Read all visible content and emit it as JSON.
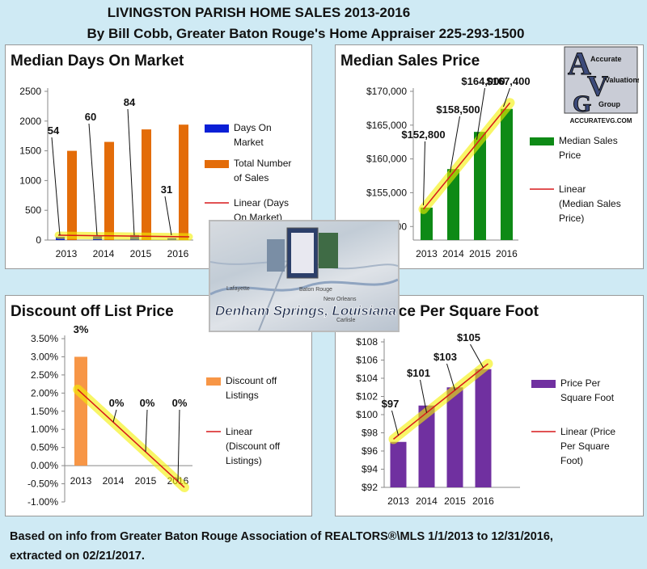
{
  "header": {
    "title": "LIVINGSTON PARISH HOME SALES 2013-2016",
    "subtitle": "By Bill Cobb, Greater Baton Rouge's Home Appraiser 225-293-1500"
  },
  "footer": {
    "line1": "Based on info from Greater Baton Rouge Association of REALTORS®\\MLS 1/1/2013 to 12/31/2016,",
    "line2": "extracted on 02/21/2017."
  },
  "photo": {
    "caption": "Denham Springs, Louisiana",
    "map_labels": [
      "Baton Rouge",
      "Lafayette",
      "New Orleans",
      "Carlisle"
    ]
  },
  "logo": {
    "line1": "Accurate",
    "line2": "Valuations",
    "line3": "Group",
    "site": "ACCURATEVG.COM"
  },
  "colors": {
    "blue": "#0a1fd6",
    "orange": "#e36c09",
    "green": "#0e8a16",
    "lightorange": "#f79646",
    "purple": "#7030a0",
    "trend": "#d7191c",
    "highlight": "#f4f000"
  },
  "chart_data": [
    {
      "type": "bar",
      "title": "Median Days On Market",
      "categories": [
        "2013",
        "2014",
        "2015",
        "2016"
      ],
      "series": [
        {
          "name": "Days On Market",
          "values": [
            54,
            60,
            84,
            31
          ],
          "color": "#0a1fd6"
        },
        {
          "name": "Total Number of Sales",
          "values": [
            1500,
            1650,
            1860,
            1940
          ],
          "color": "#e36c09"
        }
      ],
      "trendline": "Linear (Days On Market)",
      "ylim": [
        0,
        2500
      ],
      "yticks": [
        "0",
        "500",
        "1000",
        "1500",
        "2000",
        "2500"
      ],
      "data_labels": [
        "54",
        "60",
        "84",
        "31"
      ]
    },
    {
      "type": "bar",
      "title": "Median Sales Price",
      "categories": [
        "2013",
        "2014",
        "2015",
        "2016"
      ],
      "series": [
        {
          "name": "Median Sales Price",
          "values": [
            152800,
            158500,
            164000,
            167400
          ],
          "color": "#0e8a16"
        }
      ],
      "trendline": "Linear (Median Sales Price)",
      "ylim": [
        148000,
        170000
      ],
      "yticks": [
        "$150,000",
        "$155,000",
        "$160,000",
        "$165,000",
        "$170,000"
      ],
      "data_labels": [
        "$152,800",
        "$158,500",
        "$164,000",
        "$167,400"
      ]
    },
    {
      "type": "bar",
      "title": "Discount off List Price",
      "categories": [
        "2013",
        "2014",
        "2015",
        "2016"
      ],
      "series": [
        {
          "name": "Discount off Listings",
          "values": [
            3.0,
            0,
            0,
            0
          ],
          "color": "#f79646"
        }
      ],
      "trendline": "Linear (Discount off Listings)",
      "ylim": [
        -1.0,
        3.5
      ],
      "yticks": [
        "-1.00%",
        "-0.50%",
        "0.00%",
        "0.50%",
        "1.00%",
        "1.50%",
        "2.00%",
        "2.50%",
        "3.00%",
        "3.50%"
      ],
      "data_labels": [
        "3%",
        "0%",
        "0%",
        "0%"
      ]
    },
    {
      "type": "bar",
      "title": "Sold Price Per Square Foot",
      "categories": [
        "2013",
        "2014",
        "2015",
        "2016"
      ],
      "series": [
        {
          "name": "Price Per Square Foot",
          "values": [
            97,
            101,
            103,
            105
          ],
          "color": "#7030a0"
        }
      ],
      "trendline": "Linear (Price Per Square Foot)",
      "ylim": [
        92,
        108
      ],
      "yticks": [
        "$92",
        "$94",
        "$96",
        "$98",
        "$100",
        "$102",
        "$104",
        "$106",
        "$108"
      ],
      "data_labels": [
        "$97",
        "$101",
        "$103",
        "$105"
      ]
    }
  ]
}
